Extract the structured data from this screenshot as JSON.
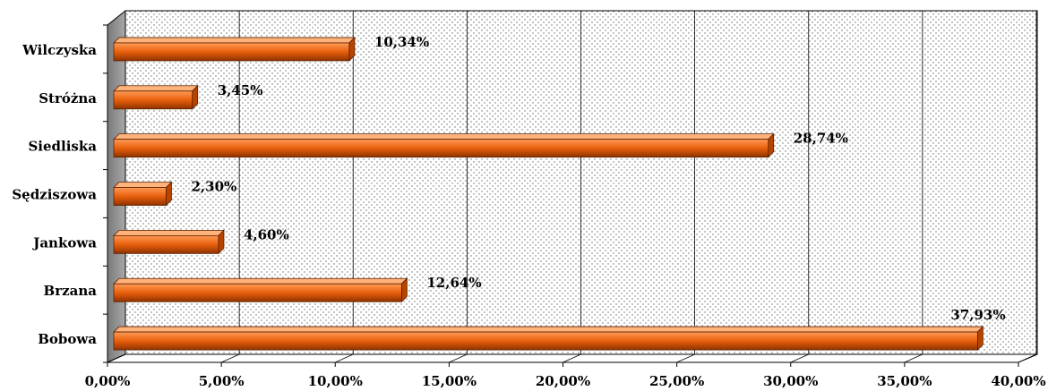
{
  "chart_data": {
    "type": "bar",
    "orientation": "horizontal",
    "categories": [
      "Wilczyska",
      "Stróżna",
      "Siedliska",
      "Sędziszowa",
      "Jankowa",
      "Brzana",
      "Bobowa"
    ],
    "values": [
      10.34,
      3.45,
      28.74,
      2.3,
      4.6,
      12.64,
      37.93
    ],
    "value_labels": [
      "10,34%",
      "3,45%",
      "28,74%",
      "2,30%",
      "4,60%",
      "12,64%",
      "37,93%"
    ],
    "x_ticks": [
      "0,00%",
      "5,00%",
      "10,00%",
      "15,00%",
      "20,00%",
      "25,00%",
      "30,00%",
      "35,00%",
      "40,00%"
    ],
    "xlim": [
      0,
      40
    ],
    "grid": true,
    "legend": "none",
    "bar_color": "#e8600c",
    "title": "",
    "xlabel": "",
    "ylabel": ""
  }
}
